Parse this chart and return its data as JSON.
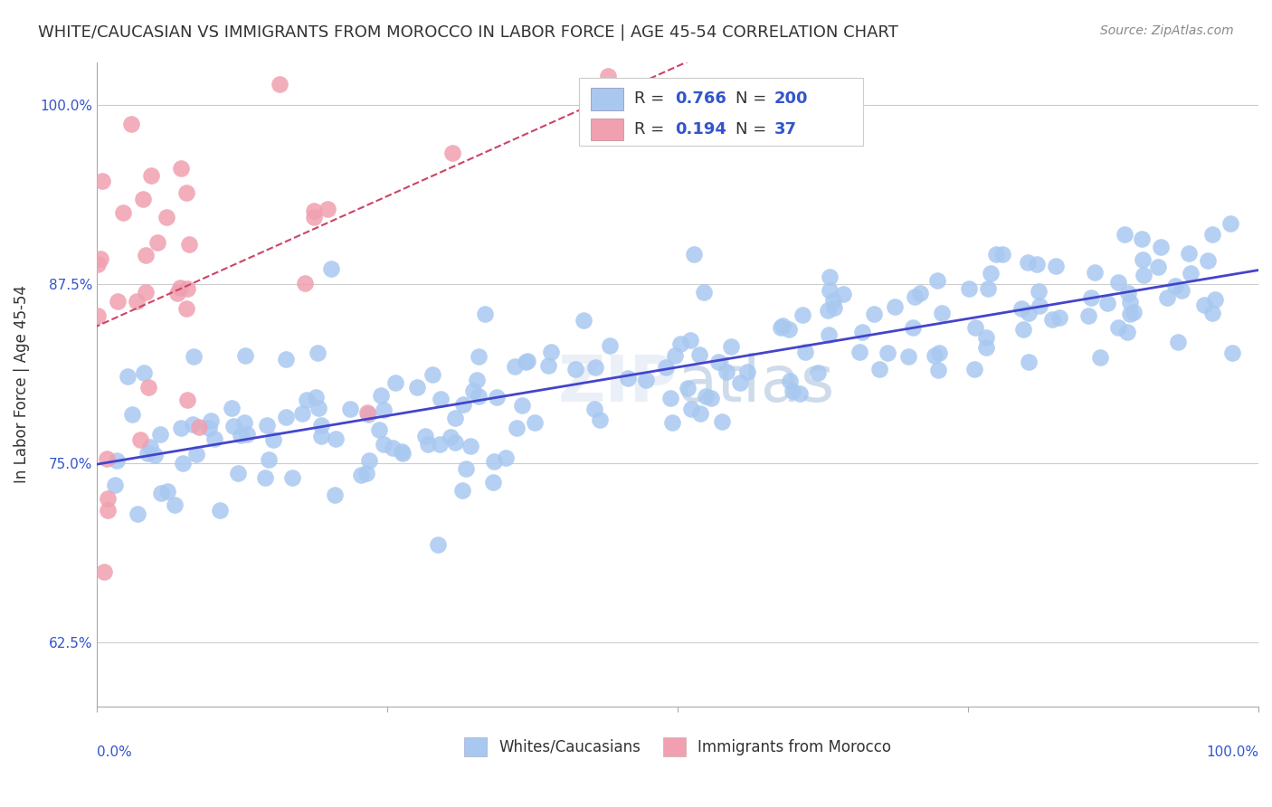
{
  "title": "WHITE/CAUCASIAN VS IMMIGRANTS FROM MOROCCO IN LABOR FORCE | AGE 45-54 CORRELATION CHART",
  "source": "Source: ZipAtlas.com",
  "ylabel": "In Labor Force | Age 45-54",
  "xlim": [
    0.0,
    1.0
  ],
  "ylim": [
    0.58,
    1.03
  ],
  "yticks": [
    0.625,
    0.75,
    0.875,
    1.0
  ],
  "ytick_labels": [
    "62.5%",
    "75.0%",
    "87.5%",
    "100.0%"
  ],
  "blue_R": 0.766,
  "blue_N": 200,
  "pink_R": 0.194,
  "pink_N": 37,
  "blue_color": "#a8c8f0",
  "pink_color": "#f0a0b0",
  "blue_line_color": "#4444cc",
  "pink_line_color": "#cc4466",
  "blue_label": "Whites/Caucasians",
  "pink_label": "Immigrants from Morocco",
  "legend_R_color": "#3355cc",
  "legend_N_color": "#3355cc",
  "background_color": "#ffffff",
  "grid_color": "#cccccc",
  "title_fontsize": 13,
  "axis_label_fontsize": 12,
  "tick_fontsize": 11,
  "legend_fontsize": 13
}
